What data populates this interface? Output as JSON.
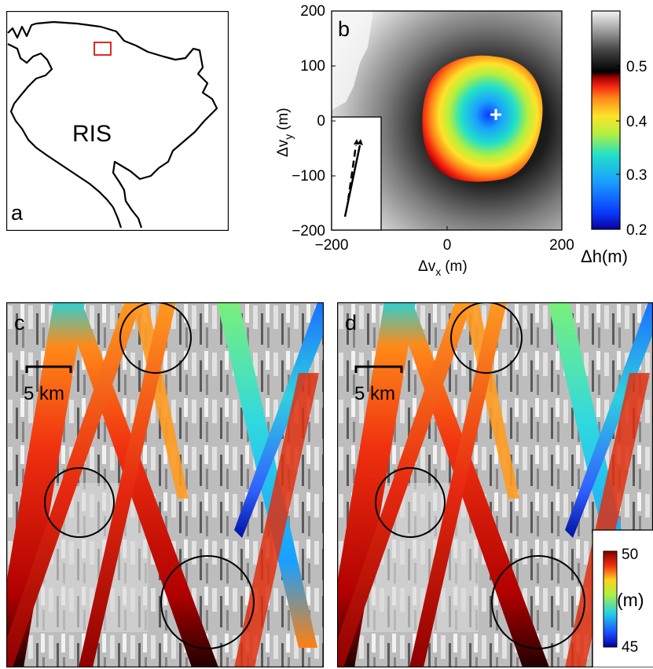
{
  "panel_a": {
    "letter": "a",
    "region_label": "RIS",
    "marker_color": "#e01010"
  },
  "panel_b": {
    "letter": "b",
    "xlabel_main": "Δv",
    "xlabel_sub": "x",
    "xlabel_unit": "(m)",
    "ylabel_main": "Δv",
    "ylabel_sub": "y",
    "ylabel_unit": "(m)",
    "xticks": [
      "−200",
      "0",
      "200"
    ],
    "yticks": [
      "200",
      "100",
      "0",
      "−100",
      "−200"
    ],
    "colorbar_ticks": [
      "0.5",
      "0.4",
      "0.3",
      "0.2"
    ],
    "colorbar_label": "Δh(m)",
    "minimum_marker": "+"
  },
  "panel_c": {
    "letter": "c",
    "scale_label": "5 km"
  },
  "panel_d": {
    "letter": "d",
    "scale_label": "5 km",
    "colorbar_top": "50",
    "colorbar_bottom": "45",
    "colorbar_unit": "(m)"
  },
  "chart_data": [
    {
      "type": "heatmap",
      "title": "",
      "xlabel": "Δvx (m)",
      "ylabel": "Δvy (m)",
      "xlim": [
        -200,
        200
      ],
      "ylim": [
        -200,
        200
      ],
      "colorbar_label": "Δh(m)",
      "colorbar_range": [
        0.2,
        0.6
      ],
      "minimum_location": {
        "x": 100,
        "y": 10
      }
    }
  ]
}
